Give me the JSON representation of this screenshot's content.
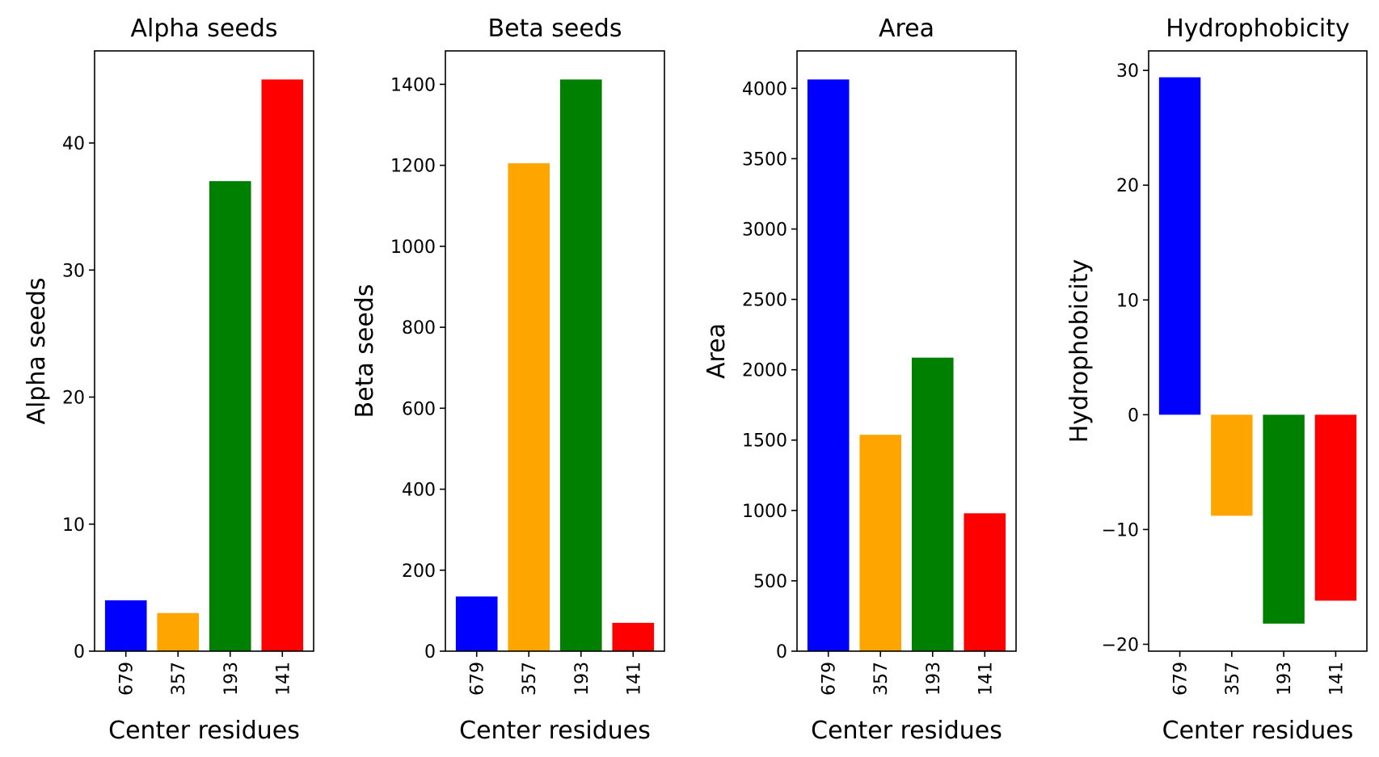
{
  "chart_data": [
    {
      "type": "bar",
      "title": "Alpha seeds",
      "xlabel": "Center residues",
      "ylabel": "Alpha seeds",
      "categories": [
        "679",
        "357",
        "193",
        "141"
      ],
      "values": [
        4,
        3,
        37,
        45
      ],
      "colors": [
        "#0000ff",
        "#ffa500",
        "#008000",
        "#ff0000"
      ],
      "ylim": [
        0,
        47.25
      ],
      "yticks": [
        0,
        10,
        20,
        30,
        40
      ],
      "ytick_labels": [
        "0",
        "10",
        "20",
        "30",
        "40"
      ],
      "grid": false,
      "legend": "none"
    },
    {
      "type": "bar",
      "title": "Beta seeds",
      "xlabel": "Center residues",
      "ylabel": "Beta seeds",
      "categories": [
        "679",
        "357",
        "193",
        "141"
      ],
      "values": [
        135,
        1205,
        1412,
        70
      ],
      "colors": [
        "#0000ff",
        "#ffa500",
        "#008000",
        "#ff0000"
      ],
      "ylim": [
        0,
        1482.6
      ],
      "yticks": [
        0,
        200,
        400,
        600,
        800,
        1000,
        1200,
        1400
      ],
      "ytick_labels": [
        "0",
        "200",
        "400",
        "600",
        "800",
        "1000",
        "1200",
        "1400"
      ],
      "grid": false,
      "legend": "none"
    },
    {
      "type": "bar",
      "title": "Area",
      "xlabel": "Center residues",
      "ylabel": "Area",
      "categories": [
        "679",
        "357",
        "193",
        "141"
      ],
      "values": [
        4063,
        1538,
        2086,
        980
      ],
      "colors": [
        "#0000ff",
        "#ffa500",
        "#008000",
        "#ff0000"
      ],
      "ylim": [
        0,
        4266
      ],
      "yticks": [
        0,
        500,
        1000,
        1500,
        2000,
        2500,
        3000,
        3500,
        4000
      ],
      "ytick_labels": [
        "0",
        "500",
        "1000",
        "1500",
        "2000",
        "2500",
        "3000",
        "3500",
        "4000"
      ],
      "grid": false,
      "legend": "none"
    },
    {
      "type": "bar",
      "title": "Hydrophobicity",
      "xlabel": "Center residues",
      "ylabel": "Hydrophobicity",
      "categories": [
        "679",
        "357",
        "193",
        "141"
      ],
      "values": [
        29.4,
        -8.8,
        -18.2,
        -16.2
      ],
      "colors": [
        "#0000ff",
        "#ffa500",
        "#008000",
        "#ff0000"
      ],
      "ylim": [
        -20.6,
        31.7
      ],
      "yticks": [
        -20,
        -10,
        0,
        10,
        20,
        30
      ],
      "ytick_labels": [
        "−20",
        "−10",
        "0",
        "10",
        "20",
        "30"
      ],
      "grid": false,
      "legend": "none"
    }
  ]
}
